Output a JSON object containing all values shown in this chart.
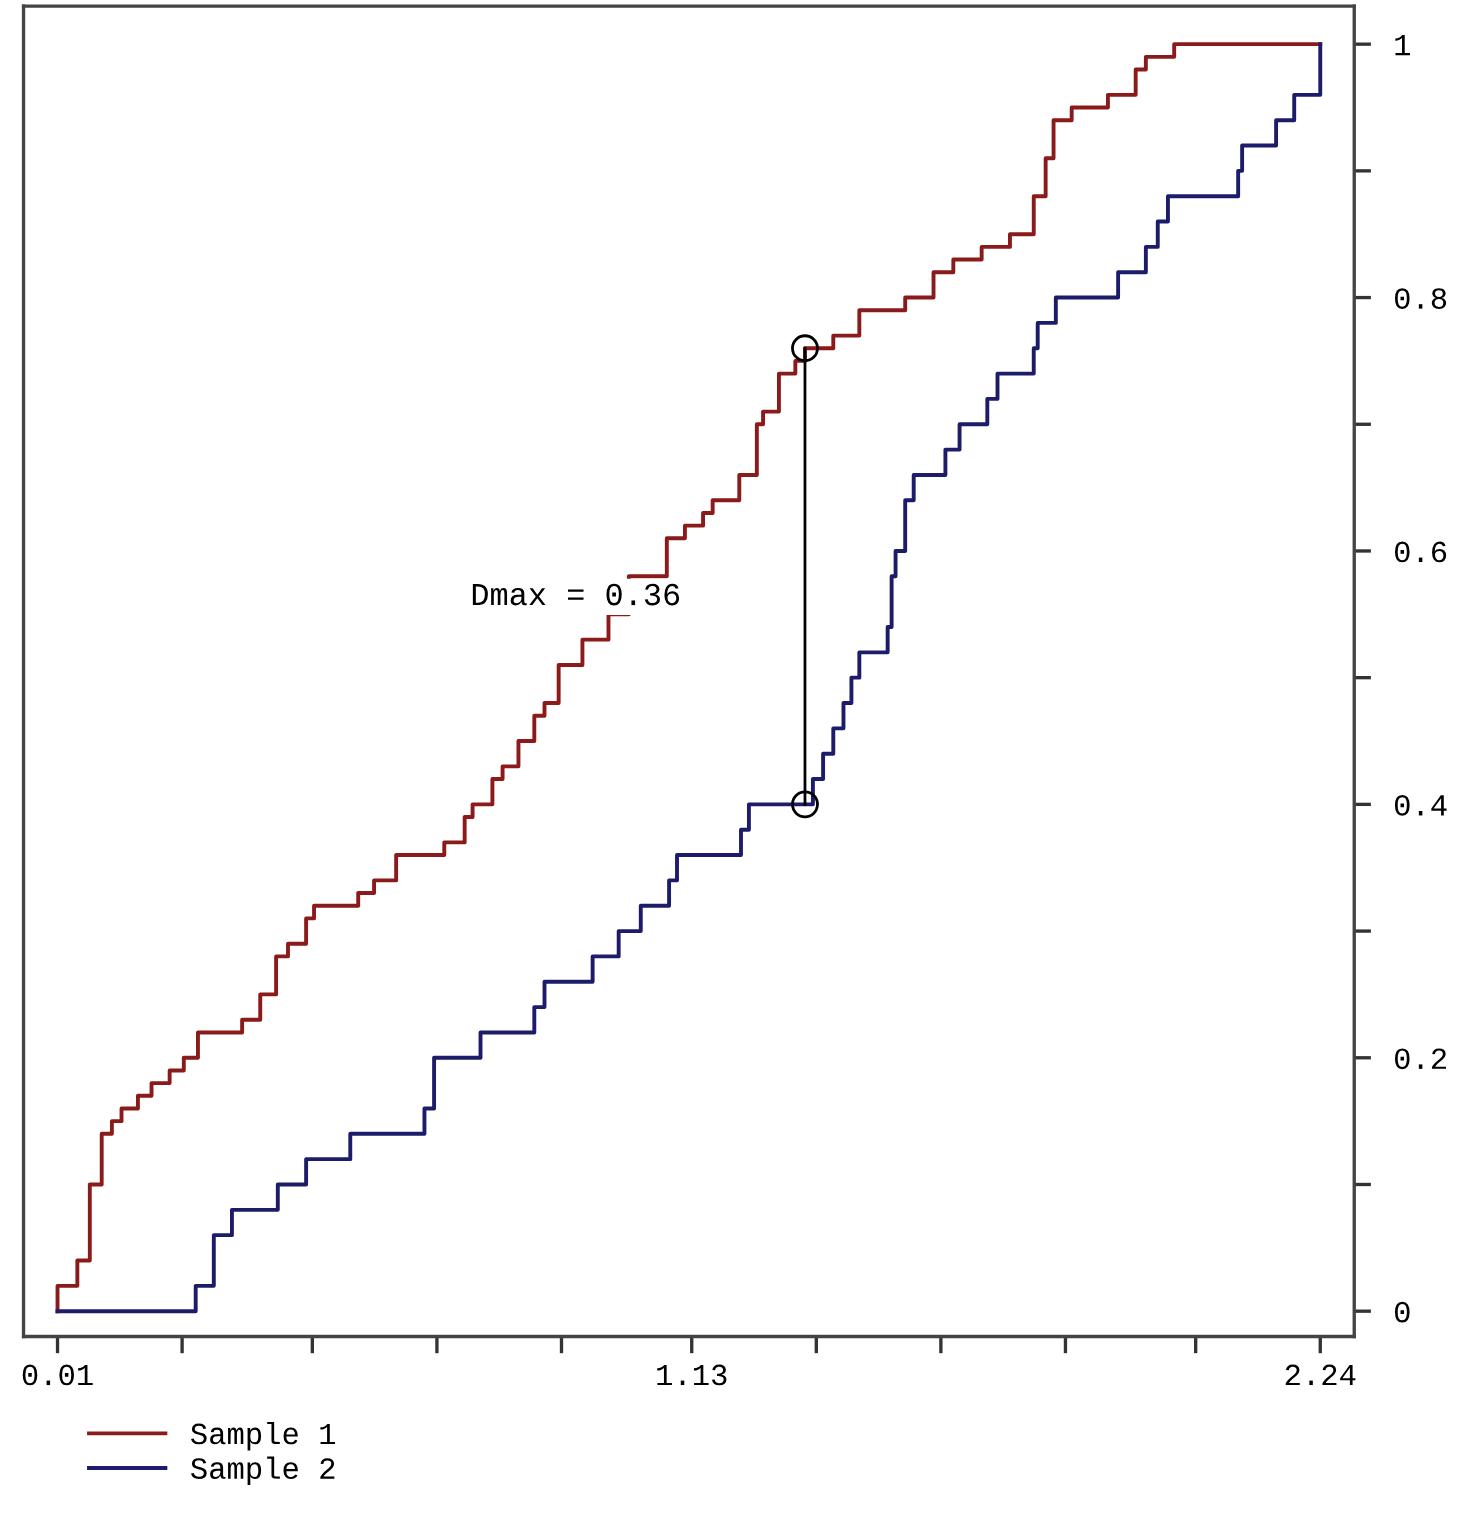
{
  "chart_data": {
    "type": "step",
    "xlim": [
      -0.05,
      2.3
    ],
    "ylim": [
      -0.02,
      1.03
    ],
    "xticks": [
      0.01,
      {
        "value": 0.23,
        "label": null
      },
      {
        "value": 0.46,
        "label": null
      },
      {
        "value": 0.68,
        "label": null
      },
      {
        "value": 0.9,
        "label": null
      },
      1.13,
      {
        "value": 1.35,
        "label": null
      },
      {
        "value": 1.57,
        "label": null
      },
      {
        "value": 1.79,
        "label": null
      },
      {
        "value": 2.02,
        "label": null
      },
      2.24
    ],
    "yticks": [
      0,
      {
        "value": 0.1,
        "label": null
      },
      0.2,
      {
        "value": 0.3,
        "label": null
      },
      0.4,
      {
        "value": 0.5,
        "label": null
      },
      0.6,
      {
        "value": 0.7,
        "label": null
      },
      0.8,
      {
        "value": 0.9,
        "label": null
      },
      1
    ],
    "grid": false,
    "legend": "bottom left",
    "series": [
      {
        "name": "Sample 1",
        "color": "#8b1a1a",
        "x": [
          0.01,
          0.01,
          0.045,
          0.067,
          0.088,
          0.106,
          0.123,
          0.152,
          0.176,
          0.208,
          0.233,
          0.258,
          0.336,
          0.368,
          0.396,
          0.417,
          0.449,
          0.463,
          0.541,
          0.569,
          0.608,
          0.693,
          0.729,
          0.743,
          0.778,
          0.796,
          0.824,
          0.852,
          0.87,
          0.895,
          0.937,
          0.983,
          1.019,
          1.086,
          1.118,
          1.15,
          1.167,
          1.214,
          1.245,
          1.256,
          1.284,
          1.313,
          1.33,
          1.38,
          1.426,
          1.507,
          1.557,
          1.592,
          1.642,
          1.692,
          1.734,
          1.755,
          1.769,
          1.801,
          1.865,
          1.914,
          1.932,
          1.982,
          2.24
        ],
        "values": [
          0,
          0.02,
          0.04,
          0.1,
          0.14,
          0.15,
          0.16,
          0.17,
          0.18,
          0.19,
          0.2,
          0.22,
          0.23,
          0.25,
          0.28,
          0.29,
          0.31,
          0.32,
          0.33,
          0.34,
          0.36,
          0.37,
          0.39,
          0.4,
          0.42,
          0.43,
          0.45,
          0.47,
          0.48,
          0.51,
          0.53,
          0.55,
          0.58,
          0.61,
          0.62,
          0.63,
          0.64,
          0.66,
          0.7,
          0.71,
          0.74,
          0.75,
          0.76,
          0.77,
          0.79,
          0.8,
          0.82,
          0.83,
          0.84,
          0.85,
          0.88,
          0.91,
          0.94,
          0.95,
          0.96,
          0.98,
          0.99,
          1.0,
          1.0
        ]
      },
      {
        "name": "Sample 2",
        "color": "#1c1c6b",
        "x": [
          0.01,
          0.254,
          0.286,
          0.318,
          0.399,
          0.449,
          0.527,
          0.658,
          0.675,
          0.757,
          0.852,
          0.87,
          0.955,
          1.001,
          1.04,
          1.09,
          1.104,
          1.217,
          1.231,
          1.344,
          1.362,
          1.38,
          1.398,
          1.412,
          1.426,
          1.476,
          1.483,
          1.49,
          1.507,
          1.522,
          1.578,
          1.603,
          1.652,
          1.67,
          1.734,
          1.741,
          1.773,
          1.883,
          1.932,
          1.953,
          1.971,
          2.095,
          2.102,
          2.162,
          2.194,
          2.24
        ],
        "values": [
          0,
          0.02,
          0.06,
          0.08,
          0.1,
          0.12,
          0.14,
          0.16,
          0.2,
          0.22,
          0.24,
          0.26,
          0.28,
          0.3,
          0.32,
          0.34,
          0.36,
          0.38,
          0.4,
          0.42,
          0.44,
          0.46,
          0.48,
          0.5,
          0.52,
          0.54,
          0.58,
          0.6,
          0.64,
          0.66,
          0.68,
          0.7,
          0.72,
          0.74,
          0.76,
          0.78,
          0.8,
          0.82,
          0.84,
          0.86,
          0.88,
          0.9,
          0.92,
          0.94,
          0.96,
          1.0
        ]
      },
      {
        "type": "line",
        "color": "#000000",
        "marker": "circle",
        "x": [
          1.33,
          1.33
        ],
        "values": [
          0.4,
          0.76
        ]
      }
    ],
    "annotations": [
      "Dmax = 0.36"
    ]
  }
}
